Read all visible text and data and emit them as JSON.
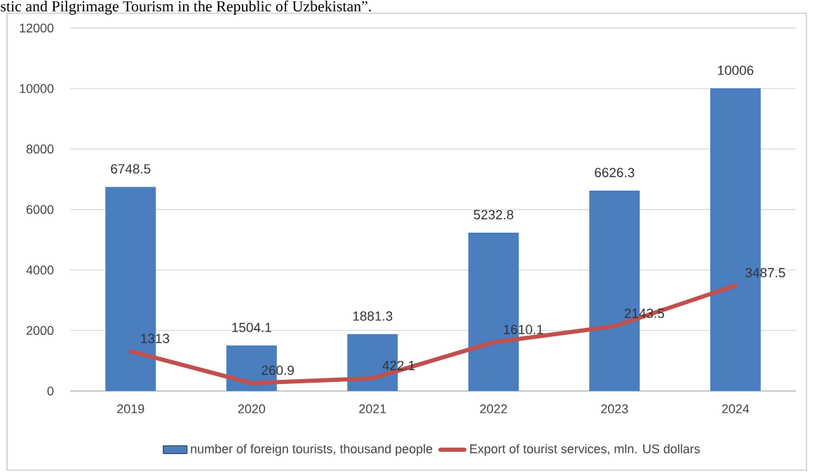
{
  "chart_data": {
    "type": "bar",
    "title": "stic and Pilgrimage Tourism in the Republic of Uzbekistan”.",
    "categories": [
      "2019",
      "2020",
      "2021",
      "2022",
      "2023",
      "2024"
    ],
    "series": [
      {
        "name": "number of foreign tourists, thousand people",
        "color": "#4a7ebf",
        "values": [
          6748.5,
          1504.1,
          1881.3,
          5232.8,
          6626.3,
          10006
        ]
      },
      {
        "name": "Export of tourist services, mln. US dollars",
        "type": "line",
        "color": "#c0504d",
        "values": [
          1313,
          260.9,
          422.1,
          1610.1,
          2143.5,
          3487.5
        ]
      }
    ],
    "ylim": [
      0,
      12000
    ],
    "yticks": [
      0,
      2000,
      4000,
      6000,
      8000,
      10000,
      12000
    ],
    "grid": "y",
    "legend": "bottom",
    "data_labels": true,
    "marker": "none",
    "line_style": "solid"
  }
}
